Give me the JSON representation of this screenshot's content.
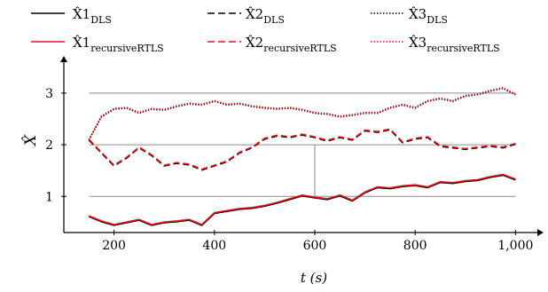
{
  "chart_data": {
    "type": "line",
    "xlabel": "t (s)",
    "ylabel": "X̂",
    "xlim": [
      100,
      1040
    ],
    "ylim": [
      0.3,
      3.6
    ],
    "x_ticks": [
      200,
      400,
      600,
      800,
      1000
    ],
    "x_tick_labels": [
      "200",
      "400",
      "600",
      "800",
      "1,000"
    ],
    "y_ticks": [
      1,
      2,
      3
    ],
    "y_tick_labels": [
      "1",
      "2",
      "3"
    ],
    "grid": "horizontal lines at y = 1, 2, 3",
    "legend_position": "top",
    "legend": [
      {
        "base": "X̂1",
        "sub": "DLS"
      },
      {
        "base": "X̂2",
        "sub": "DLS"
      },
      {
        "base": "X̂3",
        "sub": "DLS"
      },
      {
        "base": "X̂1",
        "sub": "recursiveRTLS"
      },
      {
        "base": "X̂2",
        "sub": "recursiveRTLS"
      },
      {
        "base": "X̂3",
        "sub": "recursiveRTLS"
      }
    ],
    "colors": {
      "DLS": "#000000",
      "recursiveRTLS": "#e8141b"
    },
    "dash_styles": [
      "solid",
      "dashed",
      "dotted"
    ],
    "series": [
      {
        "name": "X̂1",
        "x": [
          150,
          175,
          200,
          225,
          250,
          275,
          300,
          325,
          350,
          375,
          400,
          425,
          450,
          475,
          500,
          525,
          550,
          575,
          600,
          625,
          650,
          675,
          700,
          725,
          750,
          775,
          800,
          825,
          850,
          875,
          900,
          925,
          950,
          975,
          1000
        ],
        "values": [
          0.62,
          0.52,
          0.45,
          0.5,
          0.55,
          0.45,
          0.5,
          0.52,
          0.55,
          0.45,
          0.68,
          0.72,
          0.76,
          0.78,
          0.82,
          0.88,
          0.95,
          1.02,
          0.98,
          0.95,
          1.02,
          0.92,
          1.08,
          1.18,
          1.16,
          1.2,
          1.22,
          1.18,
          1.28,
          1.26,
          1.3,
          1.32,
          1.38,
          1.42,
          1.33
        ]
      },
      {
        "name": "X̂2",
        "x": [
          150,
          175,
          200,
          225,
          250,
          275,
          300,
          325,
          350,
          375,
          400,
          425,
          450,
          475,
          500,
          525,
          550,
          575,
          600,
          625,
          650,
          675,
          700,
          725,
          750,
          775,
          800,
          825,
          850,
          875,
          900,
          925,
          950,
          975,
          1000
        ],
        "values": [
          2.1,
          1.85,
          1.6,
          1.75,
          1.95,
          1.8,
          1.6,
          1.65,
          1.62,
          1.52,
          1.6,
          1.68,
          1.85,
          1.95,
          2.12,
          2.18,
          2.15,
          2.2,
          2.15,
          2.08,
          2.15,
          2.1,
          2.28,
          2.25,
          2.3,
          2.05,
          2.12,
          2.15,
          1.98,
          1.95,
          1.92,
          1.95,
          1.98,
          1.95,
          2.02
        ]
      },
      {
        "name": "X̂3",
        "x": [
          150,
          175,
          200,
          225,
          250,
          275,
          300,
          325,
          350,
          375,
          400,
          425,
          450,
          475,
          500,
          525,
          550,
          575,
          600,
          625,
          650,
          675,
          700,
          725,
          750,
          775,
          800,
          825,
          850,
          875,
          900,
          925,
          950,
          975,
          1000
        ],
        "values": [
          2.1,
          2.55,
          2.7,
          2.72,
          2.62,
          2.7,
          2.68,
          2.75,
          2.8,
          2.78,
          2.85,
          2.78,
          2.8,
          2.75,
          2.72,
          2.7,
          2.72,
          2.68,
          2.62,
          2.6,
          2.55,
          2.58,
          2.62,
          2.62,
          2.72,
          2.78,
          2.72,
          2.85,
          2.9,
          2.85,
          2.95,
          2.98,
          3.05,
          3.1,
          2.98
        ]
      }
    ]
  }
}
